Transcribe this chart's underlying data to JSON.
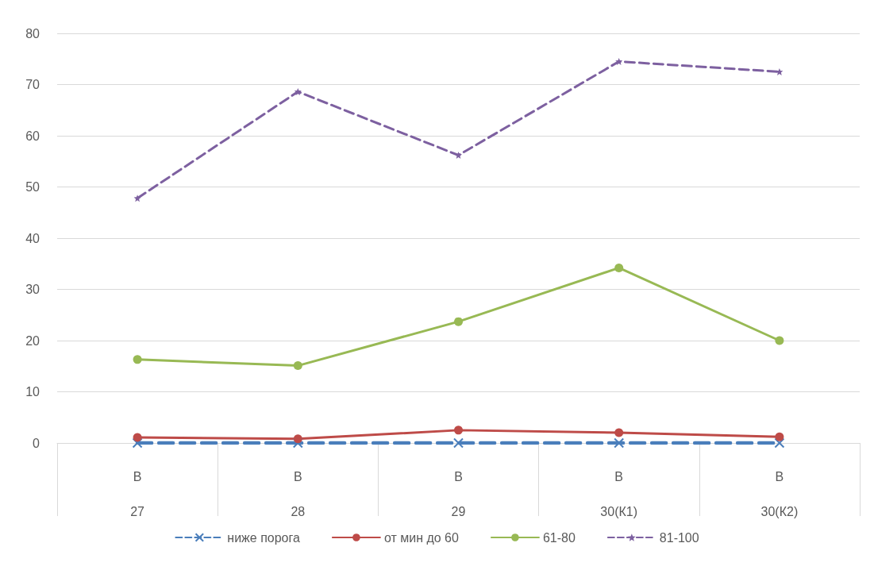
{
  "chart_data": {
    "type": "line",
    "categories": [
      "В\n27",
      "В\n28",
      "В\n29",
      "В\n30(К1)",
      "В\n30(К2)"
    ],
    "series": [
      {
        "name": "ниже порога",
        "color": "#4a7ebb",
        "values": [
          0,
          0,
          0,
          0,
          0
        ],
        "marker": "cross",
        "line_style": "dashed"
      },
      {
        "name": "от мин до 60",
        "color": "#be4b48",
        "values": [
          1.1,
          0.8,
          2.5,
          2,
          1.2
        ],
        "marker": "circle",
        "line_style": "solid"
      },
      {
        "name": "61-80",
        "color": "#98b954",
        "values": [
          16.3,
          15.1,
          23.7,
          34.2,
          20
        ],
        "marker": "circle",
        "line_style": "solid"
      },
      {
        "name": "81-100",
        "color": "#7d60a0",
        "values": [
          47.8,
          68.6,
          56.2,
          74.5,
          72.5
        ],
        "marker": "star",
        "line_style": "dashed"
      }
    ],
    "ylim": [
      0,
      80
    ],
    "yticks": [
      0,
      10,
      20,
      30,
      40,
      50,
      60,
      70,
      80
    ],
    "grid": "y",
    "legend": "bottom"
  }
}
